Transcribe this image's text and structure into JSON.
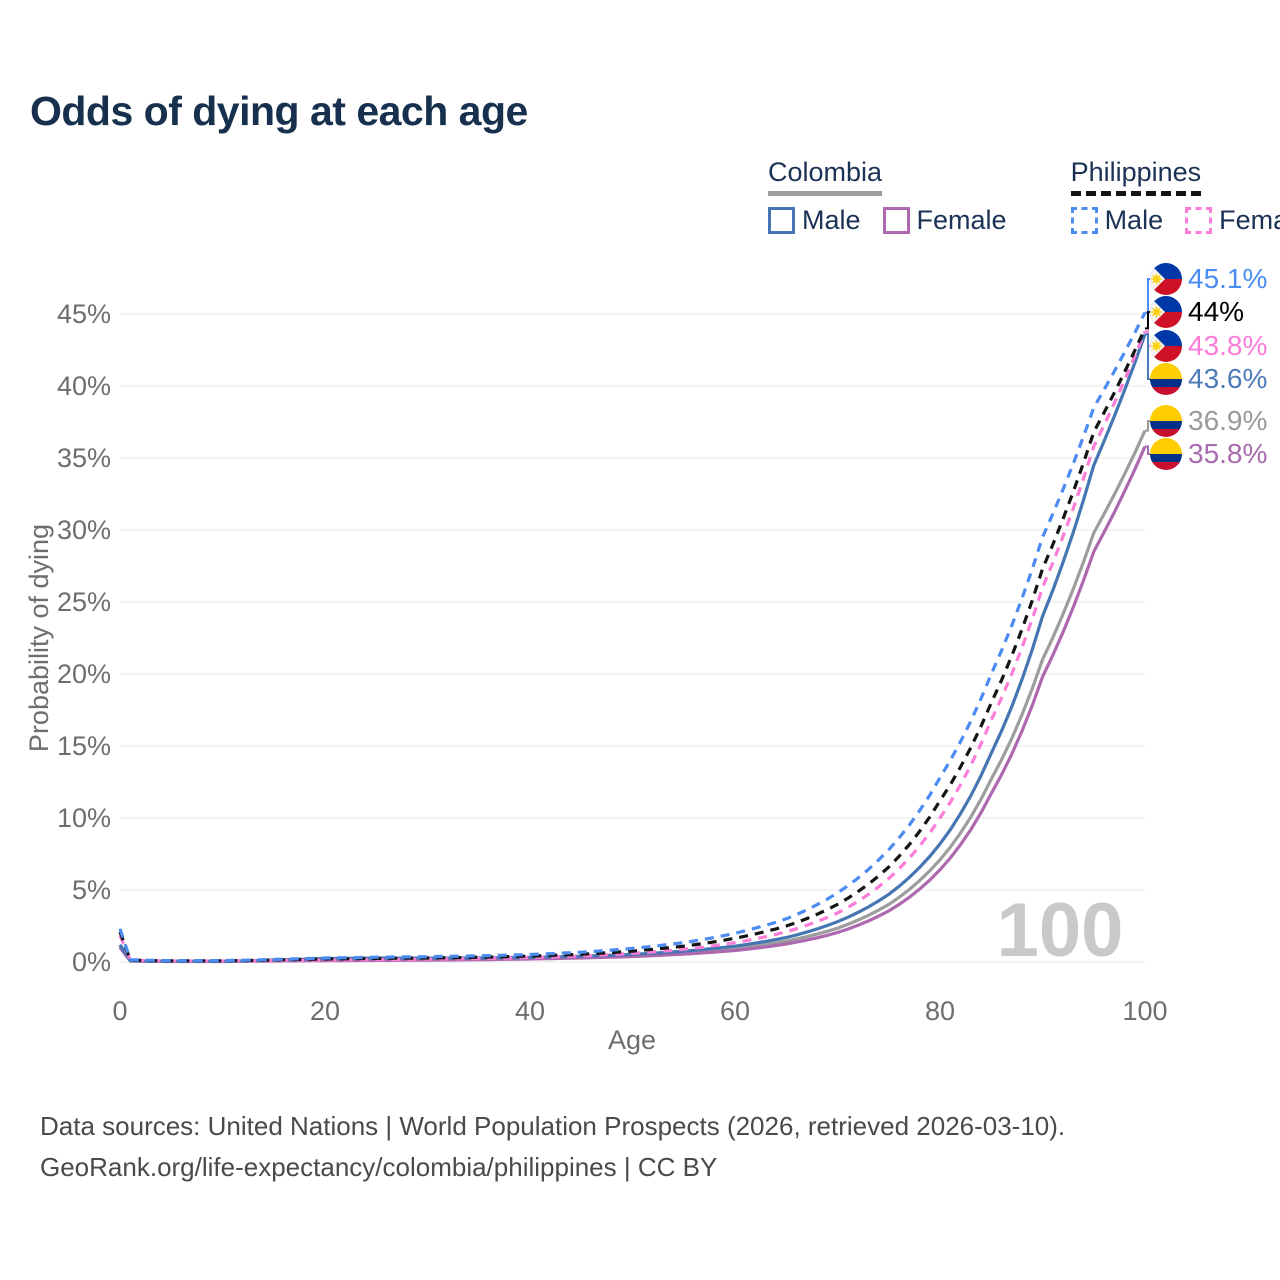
{
  "title": "Odds of dying at each age",
  "legend": {
    "groups": [
      {
        "country": "Colombia",
        "style": "solid",
        "items": [
          {
            "label": "Male",
            "color": "#4575b2"
          },
          {
            "label": "Female",
            "color": "#ad68af"
          }
        ]
      },
      {
        "country": "Philippines",
        "style": "dashed",
        "items": [
          {
            "label": "Male",
            "color": "#4b8bf2"
          },
          {
            "label": "Female",
            "color": "#fb7dd8"
          }
        ]
      }
    ]
  },
  "watermark": "100",
  "end_labels": [
    {
      "text": "45.1%",
      "value": 45.1,
      "color": "#4a8df2",
      "flag": "philippines",
      "series": 0
    },
    {
      "text": "44%",
      "value": 44.0,
      "color": "#000000",
      "flag": "philippines",
      "series": 1
    },
    {
      "text": "43.8%",
      "value": 43.8,
      "color": "#fb7dd8",
      "flag": "philippines",
      "series": 2
    },
    {
      "text": "43.6%",
      "value": 43.6,
      "color": "#4d7ab8",
      "flag": "colombia",
      "series": 3
    },
    {
      "text": "36.9%",
      "value": 36.9,
      "color": "#9a9a9a",
      "flag": "colombia",
      "series": 4
    },
    {
      "text": "35.8%",
      "value": 35.8,
      "color": "#a76cae",
      "flag": "colombia",
      "series": 5
    }
  ],
  "footer": {
    "line1": "Data sources: United Nations | World Population Prospects (2026, retrieved 2026-03-10).",
    "line2": "GeoRank.org/life-expectancy/colombia/philippines | CC BY"
  },
  "chart_data": {
    "type": "line",
    "title": "Odds of dying at each age",
    "xlabel": "Age",
    "ylabel": "Probability of dying",
    "xlim": [
      0,
      100
    ],
    "ylim_pct": [
      0,
      47
    ],
    "x_ticks": [
      0,
      20,
      40,
      60,
      80,
      100
    ],
    "y_ticks_pct": [
      0,
      5,
      10,
      15,
      20,
      25,
      30,
      35,
      40,
      45
    ],
    "y_tick_labels": [
      "0%",
      "5%",
      "10%",
      "15%",
      "20%",
      "25%",
      "30%",
      "35%",
      "40%",
      "45%"
    ],
    "grid": "horizontal-only",
    "legend_position": "top-right",
    "x": [
      0,
      1,
      2,
      5,
      10,
      15,
      20,
      25,
      30,
      35,
      40,
      45,
      50,
      55,
      60,
      65,
      70,
      75,
      80,
      85,
      90,
      95,
      100
    ],
    "series": [
      {
        "name": "Philippines Male",
        "country": "Philippines",
        "sex": "male",
        "color": "#4b8bf2",
        "dash": true,
        "values": [
          2.3,
          0.16,
          0.13,
          0.09,
          0.1,
          0.18,
          0.28,
          0.33,
          0.37,
          0.43,
          0.52,
          0.68,
          0.95,
          1.35,
          2.0,
          3.0,
          4.8,
          7.8,
          12.8,
          20.0,
          29.5,
          38.5,
          45.1
        ]
      },
      {
        "name": "Philippines Both sexes",
        "country": "Philippines",
        "sex": "both",
        "color": "#141414",
        "dash": true,
        "values": [
          2.1,
          0.14,
          0.11,
          0.08,
          0.08,
          0.14,
          0.21,
          0.25,
          0.28,
          0.33,
          0.41,
          0.54,
          0.76,
          1.1,
          1.65,
          2.5,
          4.0,
          6.6,
          11.2,
          18.0,
          27.3,
          36.8,
          44.0
        ]
      },
      {
        "name": "Philippines Female",
        "country": "Philippines",
        "sex": "female",
        "color": "#fb7dd8",
        "dash": true,
        "values": [
          1.85,
          0.12,
          0.1,
          0.07,
          0.07,
          0.1,
          0.13,
          0.16,
          0.2,
          0.24,
          0.31,
          0.42,
          0.6,
          0.88,
          1.35,
          2.1,
          3.4,
          5.8,
          10.0,
          16.8,
          26.0,
          35.8,
          43.8
        ]
      },
      {
        "name": "Colombia Male",
        "country": "Colombia",
        "sex": "male",
        "color": "#4575b2",
        "dash": false,
        "values": [
          1.2,
          0.09,
          0.07,
          0.05,
          0.05,
          0.14,
          0.24,
          0.27,
          0.27,
          0.28,
          0.32,
          0.4,
          0.53,
          0.75,
          1.1,
          1.7,
          2.8,
          4.7,
          8.2,
          14.5,
          24.0,
          34.5,
          43.6
        ]
      },
      {
        "name": "Colombia Both sexes",
        "country": "Colombia",
        "sex": "both",
        "color": "#9d9d9d",
        "dash": false,
        "values": [
          1.1,
          0.08,
          0.06,
          0.04,
          0.04,
          0.1,
          0.17,
          0.19,
          0.2,
          0.22,
          0.26,
          0.33,
          0.45,
          0.64,
          0.93,
          1.45,
          2.35,
          4.0,
          7.1,
          12.7,
          21.0,
          29.8,
          36.9
        ]
      },
      {
        "name": "Colombia Female",
        "country": "Colombia",
        "sex": "female",
        "color": "#ad68af",
        "dash": false,
        "values": [
          1.0,
          0.07,
          0.05,
          0.035,
          0.035,
          0.07,
          0.09,
          0.11,
          0.13,
          0.16,
          0.21,
          0.28,
          0.38,
          0.55,
          0.8,
          1.25,
          2.05,
          3.55,
          6.4,
          11.7,
          19.8,
          28.5,
          35.8
        ]
      }
    ]
  }
}
